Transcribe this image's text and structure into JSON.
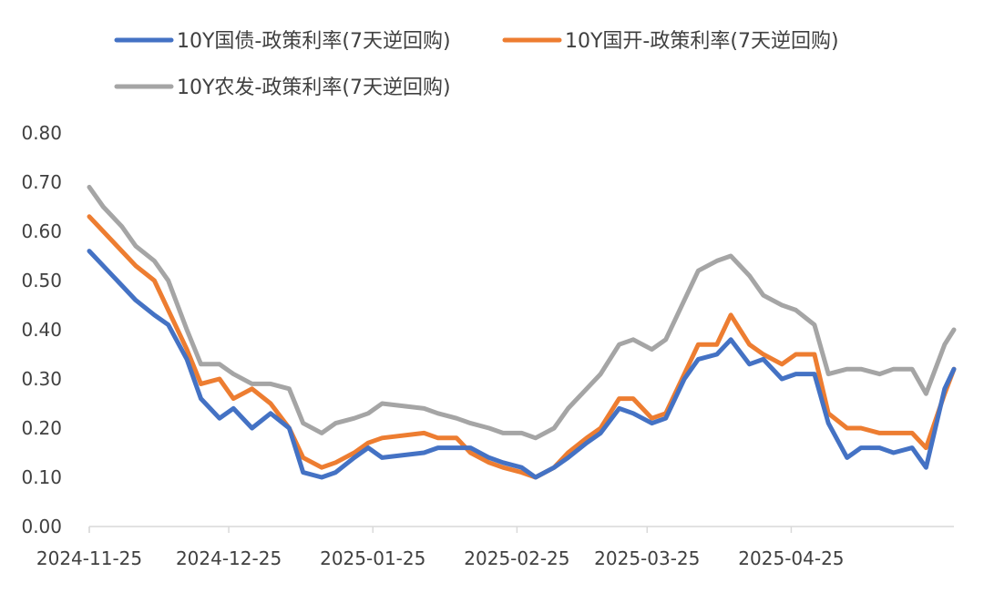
{
  "chart_data": {
    "type": "line",
    "title": "",
    "xlabel": "",
    "ylabel": "",
    "ylim": [
      0,
      0.8
    ],
    "y_ticks": [
      "0.00",
      "0.10",
      "0.20",
      "0.30",
      "0.40",
      "0.50",
      "0.60",
      "0.70",
      "0.80"
    ],
    "x_ticks": [
      "2024-11-25",
      "2024-12-25",
      "2025-01-25",
      "2025-02-25",
      "2025-03-25",
      "2025-04-25"
    ],
    "x": [
      "2024-11-25",
      "2024-11-28",
      "2024-12-02",
      "2024-12-05",
      "2024-12-09",
      "2024-12-12",
      "2024-12-16",
      "2024-12-19",
      "2024-12-23",
      "2024-12-26",
      "2024-12-30",
      "2025-01-03",
      "2025-01-07",
      "2025-01-10",
      "2025-01-14",
      "2025-01-17",
      "2025-01-21",
      "2025-01-24",
      "2025-01-27",
      "2025-02-05",
      "2025-02-08",
      "2025-02-12",
      "2025-02-15",
      "2025-02-19",
      "2025-02-22",
      "2025-02-26",
      "2025-03-01",
      "2025-03-05",
      "2025-03-08",
      "2025-03-12",
      "2025-03-15",
      "2025-03-19",
      "2025-03-22",
      "2025-03-26",
      "2025-03-29",
      "2025-04-02",
      "2025-04-05",
      "2025-04-09",
      "2025-04-12",
      "2025-04-16",
      "2025-04-19",
      "2025-04-23",
      "2025-04-26",
      "2025-04-30",
      "2025-05-03",
      "2025-05-07",
      "2025-05-10",
      "2025-05-14",
      "2025-05-17",
      "2025-05-21",
      "2025-05-24",
      "2025-05-28",
      "2025-05-30"
    ],
    "legend_position": "top",
    "series": [
      {
        "name": "10Y国债-政策利率(7天逆回购)",
        "color": "#4472C4",
        "values": [
          0.56,
          0.53,
          0.49,
          0.46,
          0.43,
          0.41,
          0.34,
          0.26,
          0.22,
          0.24,
          0.2,
          0.23,
          0.2,
          0.11,
          0.1,
          0.11,
          0.14,
          0.16,
          0.14,
          0.15,
          0.16,
          0.16,
          0.16,
          0.14,
          0.13,
          0.12,
          0.1,
          0.12,
          0.14,
          0.17,
          0.19,
          0.24,
          0.23,
          0.21,
          0.22,
          0.3,
          0.34,
          0.35,
          0.38,
          0.33,
          0.34,
          0.3,
          0.31,
          0.31,
          0.21,
          0.14,
          0.16,
          0.16,
          0.15,
          0.16,
          0.12,
          0.28,
          0.32
        ]
      },
      {
        "name": "10Y国开-政策利率(7天逆回购)",
        "color": "#ED7D31",
        "values": [
          0.63,
          0.6,
          0.56,
          0.53,
          0.5,
          0.44,
          0.36,
          0.29,
          0.3,
          0.26,
          0.28,
          0.25,
          0.2,
          0.14,
          0.12,
          0.13,
          0.15,
          0.17,
          0.18,
          0.19,
          0.18,
          0.18,
          0.15,
          0.13,
          0.12,
          0.11,
          0.1,
          0.12,
          0.15,
          0.18,
          0.2,
          0.26,
          0.26,
          0.22,
          0.23,
          0.31,
          0.37,
          0.37,
          0.43,
          0.37,
          0.35,
          0.33,
          0.35,
          0.35,
          0.23,
          0.2,
          0.2,
          0.19,
          0.19,
          0.19,
          0.16,
          0.27,
          0.32
        ]
      },
      {
        "name": "10Y农发-政策利率(7天逆回购)",
        "color": "#A5A5A5",
        "values": [
          0.69,
          0.65,
          0.61,
          0.57,
          0.54,
          0.5,
          0.4,
          0.33,
          0.33,
          0.31,
          0.29,
          0.29,
          0.28,
          0.21,
          0.19,
          0.21,
          0.22,
          0.23,
          0.25,
          0.24,
          0.23,
          0.22,
          0.21,
          0.2,
          0.19,
          0.19,
          0.18,
          0.2,
          0.24,
          0.28,
          0.31,
          0.37,
          0.38,
          0.36,
          0.38,
          0.46,
          0.52,
          0.54,
          0.55,
          0.51,
          0.47,
          0.45,
          0.44,
          0.41,
          0.31,
          0.32,
          0.32,
          0.31,
          0.32,
          0.32,
          0.27,
          0.37,
          0.4
        ]
      }
    ]
  }
}
